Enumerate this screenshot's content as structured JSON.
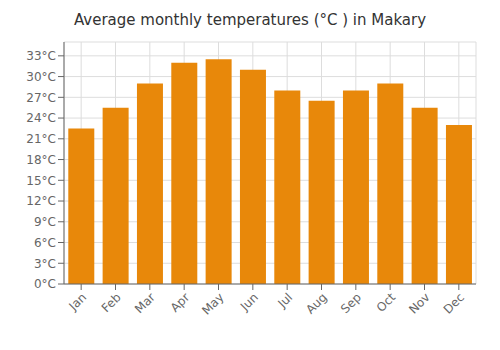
{
  "chart_data": {
    "type": "bar",
    "title": "Average monthly temperatures (°C ) in Makary",
    "categories": [
      "Jan",
      "Feb",
      "Mar",
      "Apr",
      "May",
      "Jun",
      "Jul",
      "Aug",
      "Sep",
      "Oct",
      "Nov",
      "Dec"
    ],
    "values": [
      22.5,
      25.5,
      29.0,
      32.0,
      32.5,
      31.0,
      28.0,
      26.5,
      28.0,
      29.0,
      25.5,
      23.0
    ],
    "color": "#E8880A",
    "ylim": [
      0,
      35
    ],
    "yticks": [
      {
        "value": 0,
        "label": "0°C"
      },
      {
        "value": 3,
        "label": "3°C"
      },
      {
        "value": 6,
        "label": "6°C"
      },
      {
        "value": 9,
        "label": "9°C"
      },
      {
        "value": 12,
        "label": "12°C"
      },
      {
        "value": 15,
        "label": "15°C"
      },
      {
        "value": 18,
        "label": "18°C"
      },
      {
        "value": 21,
        "label": "21°C"
      },
      {
        "value": 24,
        "label": "24°C"
      },
      {
        "value": 27,
        "label": "27°C"
      },
      {
        "value": 30,
        "label": "30°C"
      },
      {
        "value": 33,
        "label": "33°C"
      }
    ],
    "grid": true
  }
}
